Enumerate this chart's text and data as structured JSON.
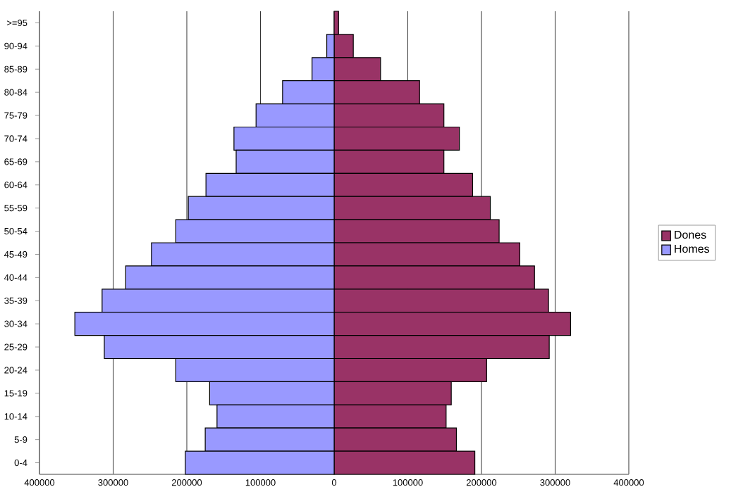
{
  "chart_data": {
    "type": "bar",
    "orientation": "horizontal",
    "categories": [
      ">=95",
      "90-94",
      "85-89",
      "80-84",
      "75-79",
      "70-74",
      "65-69",
      "60-64",
      "55-59",
      "50-54",
      "45-49",
      "40-44",
      "35-39",
      "30-34",
      "25-29",
      "20-24",
      "15-19",
      "10-14",
      "5-9",
      "0-4"
    ],
    "series": [
      {
        "name": "Dones",
        "color": "#993366",
        "values": [
          6000,
          26000,
          63000,
          116000,
          149000,
          170000,
          149000,
          188000,
          212000,
          224000,
          252000,
          272000,
          291000,
          321000,
          292000,
          207000,
          159000,
          152000,
          166000,
          191000
        ]
      },
      {
        "name": "Homes",
        "color": "#9999ff",
        "values": [
          null,
          -10000,
          -30000,
          -70000,
          -106000,
          -136000,
          -133000,
          -174000,
          -198000,
          -215000,
          -248000,
          -283000,
          -315000,
          -352000,
          -312000,
          -215000,
          -169000,
          -159000,
          -175000,
          -202000
        ]
      }
    ],
    "xlim": [
      -400000,
      400000
    ],
    "xticks": [
      {
        "value": -400000,
        "label": "400000"
      },
      {
        "value": -300000,
        "label": "300000"
      },
      {
        "value": -200000,
        "label": "200000"
      },
      {
        "value": -100000,
        "label": "100000"
      },
      0,
      100000,
      200000,
      300000,
      400000
    ],
    "grid": "x",
    "legend": "right",
    "stacked": true
  }
}
